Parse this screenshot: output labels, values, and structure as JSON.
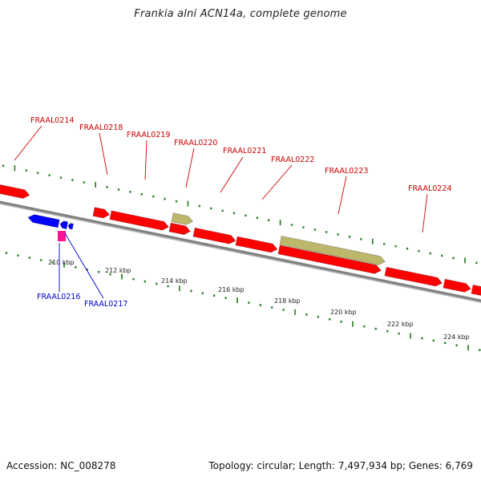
{
  "title": "Frankia alni ACN14a, complete genome",
  "footer": {
    "accession": "Accession: NC_008278",
    "summary": "Topology: circular; Length: 7,497,934 bp; Genes: 6,769"
  },
  "colors": {
    "forward_gene": "#ff0000",
    "reverse_gene": "#0000ff",
    "rna": "#ff1493",
    "pseudo": "#bdb76b",
    "forward_label": "#cc0000",
    "reverse_label": "#0000cc",
    "tick": "#1e7a1e",
    "backbone": "#808080"
  },
  "scale_labels": [
    "210 kbp",
    "212 kbp",
    "214 kbp",
    "216 kbp",
    "218 kbp",
    "220 kbp",
    "222 kbp",
    "224 kbp"
  ],
  "forward_labels": [
    "FRAAL0214",
    "FRAAL0218",
    "FRAAL0219",
    "FRAAL0220",
    "FRAAL0221",
    "FRAAL0222",
    "FRAAL0223",
    "FRAAL0224"
  ],
  "reverse_labels": [
    "FRAAL0216",
    "FRAAL0217"
  ]
}
